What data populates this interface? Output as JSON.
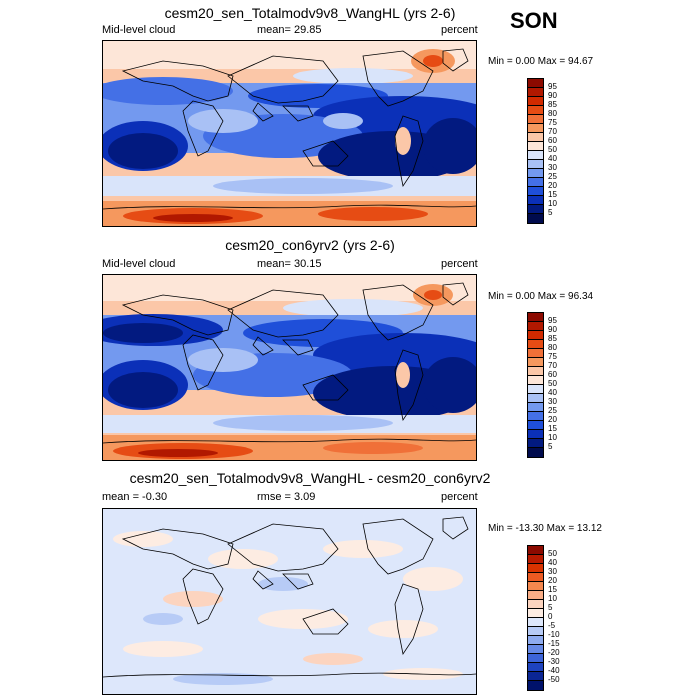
{
  "season": "SON",
  "panels": [
    {
      "title": "cesm20_sen_Totalmodv9v8_WangHL (yrs 2-6)",
      "left_label": "Mid-level cloud",
      "center_label": "mean=  29.85",
      "right_label": "percent",
      "minmax": "Min =   0.00 Max =  94.67",
      "colorbar_labels": [
        "95",
        "90",
        "85",
        "80",
        "75",
        "70",
        "60",
        "50",
        "40",
        "30",
        "25",
        "20",
        "15",
        "10",
        "5"
      ]
    },
    {
      "title": "cesm20_con6yrv2 (yrs 2-6)",
      "left_label": "Mid-level cloud",
      "center_label": "mean=  30.15",
      "right_label": "percent",
      "minmax": "Min =   0.00 Max =  96.34",
      "colorbar_labels": [
        "95",
        "90",
        "85",
        "80",
        "75",
        "70",
        "60",
        "50",
        "40",
        "30",
        "25",
        "20",
        "15",
        "10",
        "5"
      ]
    },
    {
      "title": "cesm20_sen_Totalmodv9v8_WangHL - cesm20_con6yrv2",
      "left_label": "mean =  -0.30",
      "center_label": "rmse =   3.09",
      "right_label": "percent",
      "minmax": "Min = -13.30 Max =  13.12",
      "colorbar_labels": [
        "50",
        "40",
        "30",
        "20",
        "15",
        "10",
        "5",
        "0",
        "-5",
        "-10",
        "-15",
        "-20",
        "-30",
        "-40",
        "-50"
      ]
    }
  ],
  "colors": {
    "abs_scale": [
      "#8c0a00",
      "#b11800",
      "#d22a00",
      "#e64c14",
      "#f07038",
      "#f5985e",
      "#fbc7a8",
      "#fde6d8",
      "#d9e4fa",
      "#a9c1f5",
      "#7399ef",
      "#4470e6",
      "#1f4fd9",
      "#0b30b8",
      "#021a80",
      "#000b4d"
    ],
    "diff_scale": [
      "#8c0a00",
      "#b81a00",
      "#d83300",
      "#ec5a22",
      "#f4874e",
      "#f9ad86",
      "#fcd4bf",
      "#fdece2",
      "#dde7fb",
      "#b7cbf6",
      "#8eabef",
      "#6689e6",
      "#3d64d8",
      "#1e43bf",
      "#0b2694",
      "#00126b"
    ]
  }
}
